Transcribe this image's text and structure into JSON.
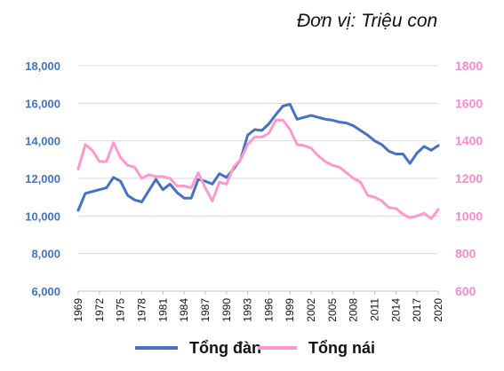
{
  "unit_label": "Đơn vị: Triệu con",
  "colors": {
    "tong_dan": "#4472C4",
    "tong_nai": "#FF99CC",
    "grid": "#D9D9D9"
  },
  "chart_data": {
    "type": "line",
    "title": "",
    "x": [
      1969,
      1970,
      1971,
      1972,
      1973,
      1974,
      1975,
      1976,
      1977,
      1978,
      1979,
      1980,
      1981,
      1982,
      1983,
      1984,
      1985,
      1986,
      1987,
      1988,
      1989,
      1990,
      1991,
      1992,
      1993,
      1994,
      1995,
      1996,
      1997,
      1998,
      1999,
      2000,
      2001,
      2002,
      2003,
      2004,
      2005,
      2006,
      2007,
      2008,
      2009,
      2010,
      2011,
      2012,
      2013,
      2014,
      2015,
      2016,
      2017,
      2018,
      2019,
      2020
    ],
    "x_tick_labels": [
      "1969",
      "1972",
      "1975",
      "1978",
      "1981",
      "1984",
      "1987",
      "1990",
      "1993",
      "1996",
      "1999",
      "2002",
      "2005",
      "2008",
      "2011",
      "2014",
      "2017",
      "2020"
    ],
    "series": [
      {
        "name": "Tổng đàn",
        "axis": "left",
        "values": [
          10300,
          11200,
          11300,
          11400,
          11500,
          12050,
          11850,
          11100,
          10850,
          10750,
          11350,
          11950,
          11400,
          11700,
          11250,
          10950,
          10950,
          11950,
          11850,
          11700,
          12250,
          12050,
          12500,
          13000,
          14300,
          14600,
          14550,
          14900,
          15400,
          15850,
          15950,
          15150,
          15250,
          15350,
          15250,
          15150,
          15100,
          15000,
          14950,
          14800,
          14550,
          14300,
          14000,
          13800,
          13450,
          13300,
          13300,
          12800,
          13350,
          13700,
          13500,
          13750
        ]
      },
      {
        "name": "Tổng nái",
        "axis": "right",
        "values": [
          1250,
          1380,
          1350,
          1290,
          1290,
          1390,
          1310,
          1270,
          1260,
          1200,
          1220,
          1210,
          1210,
          1200,
          1160,
          1160,
          1150,
          1230,
          1150,
          1080,
          1180,
          1170,
          1260,
          1300,
          1380,
          1420,
          1420,
          1440,
          1510,
          1510,
          1460,
          1380,
          1375,
          1360,
          1320,
          1290,
          1270,
          1260,
          1230,
          1200,
          1180,
          1110,
          1100,
          1080,
          1045,
          1040,
          1010,
          990,
          1000,
          1015,
          985,
          1035
        ]
      }
    ],
    "y_left": {
      "min": 6000,
      "max": 18000,
      "step": 2000,
      "tick_labels": [
        "6,000",
        "8,000",
        "10,000",
        "12,000",
        "14,000",
        "16,000",
        "18,000"
      ]
    },
    "y_right": {
      "min": 600,
      "max": 1800,
      "step": 200,
      "tick_labels": [
        "600",
        "800",
        "1000",
        "1200",
        "1400",
        "1600",
        "1800"
      ]
    },
    "grid": true,
    "legend": {
      "position": "bottom",
      "entries": [
        {
          "label": "Tổng đàn"
        },
        {
          "label": "Tổng nái"
        }
      ]
    }
  }
}
